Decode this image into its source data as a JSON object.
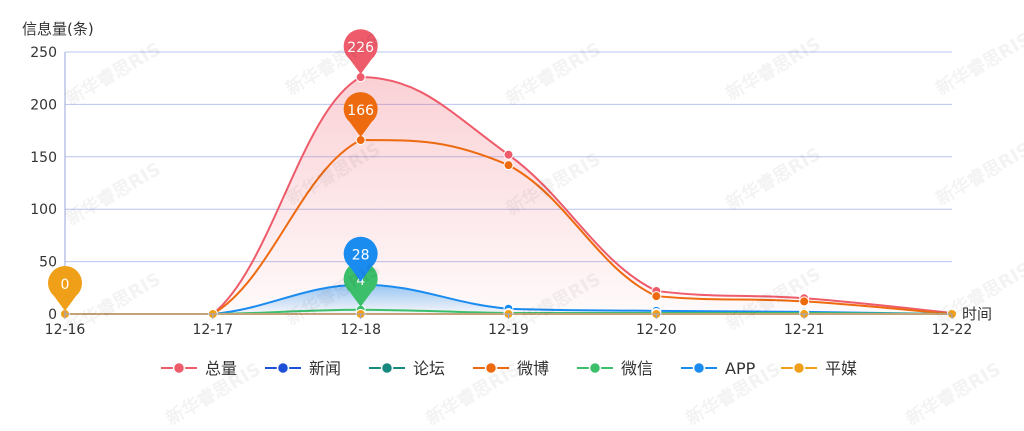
{
  "watermark": "新华睿思RIS",
  "chart_data": {
    "type": "line",
    "ylabel": "信息量(条)",
    "xlabel": "时间",
    "categories": [
      "12-16",
      "12-17",
      "12-18",
      "12-19",
      "12-20",
      "12-21",
      "12-22"
    ],
    "ylim": [
      0,
      250
    ],
    "yticks": [
      0,
      50,
      100,
      150,
      200,
      250
    ],
    "grid": true,
    "legend_position": "bottom-center",
    "series": [
      {
        "name": "总量",
        "color": "#ee5b6a",
        "values": [
          0,
          0,
          226,
          152,
          22,
          15,
          1
        ],
        "area": true
      },
      {
        "name": "新闻",
        "color": "#1e4fd8",
        "values": [
          0,
          0,
          0,
          0,
          0,
          0,
          0
        ]
      },
      {
        "name": "论坛",
        "color": "#16887d",
        "values": [
          0,
          0,
          0,
          0,
          0,
          0,
          0
        ]
      },
      {
        "name": "微博",
        "color": "#ee6a0f",
        "values": [
          0,
          0,
          166,
          142,
          17,
          12,
          0
        ]
      },
      {
        "name": "微信",
        "color": "#3cbf6b",
        "values": [
          0,
          0,
          4,
          1,
          1,
          1,
          0
        ]
      },
      {
        "name": "APP",
        "color": "#1a8cf0",
        "values": [
          0,
          0,
          28,
          5,
          3,
          2,
          0
        ],
        "area": true
      },
      {
        "name": "平媒",
        "color": "#f0a018",
        "values": [
          0,
          0,
          0,
          0,
          0,
          0,
          0
        ]
      }
    ],
    "markers": [
      {
        "series": "总量",
        "index": 2,
        "label": "226",
        "color": "#ee5b6a"
      },
      {
        "series": "微博",
        "index": 2,
        "label": "166",
        "color": "#ee6a0f"
      },
      {
        "series": "微信",
        "index": 2,
        "label": "4",
        "color": "#3cbf6b"
      },
      {
        "series": "APP",
        "index": 2,
        "label": "28",
        "color": "#1a8cf0"
      },
      {
        "series": "平媒",
        "index": 0,
        "label": "0",
        "color": "#f0a018"
      }
    ]
  }
}
